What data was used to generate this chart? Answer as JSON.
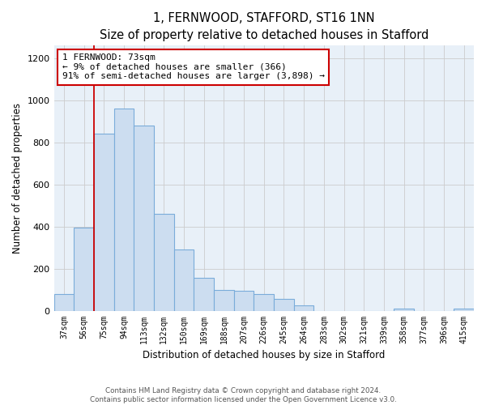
{
  "title": "1, FERNWOOD, STAFFORD, ST16 1NN",
  "subtitle": "Size of property relative to detached houses in Stafford",
  "xlabel": "Distribution of detached houses by size in Stafford",
  "ylabel": "Number of detached properties",
  "categories": [
    "37sqm",
    "56sqm",
    "75sqm",
    "94sqm",
    "113sqm",
    "132sqm",
    "150sqm",
    "169sqm",
    "188sqm",
    "207sqm",
    "226sqm",
    "245sqm",
    "264sqm",
    "283sqm",
    "302sqm",
    "321sqm",
    "339sqm",
    "358sqm",
    "377sqm",
    "396sqm",
    "415sqm"
  ],
  "values": [
    80,
    395,
    840,
    960,
    880,
    460,
    290,
    155,
    100,
    95,
    80,
    55,
    25,
    0,
    0,
    0,
    0,
    10,
    0,
    0,
    10
  ],
  "bar_color": "#ccddf0",
  "bar_edge_color": "#7aacda",
  "marker_line_color": "#cc0000",
  "annotation_box_facecolor": "#ffffff",
  "annotation_box_edgecolor": "#cc0000",
  "marker_label_line1": "1 FERNWOOD: 73sqm",
  "marker_label_line2": "← 9% of detached houses are smaller (366)",
  "marker_label_line3": "91% of semi-detached houses are larger (3,898) →",
  "ylim": [
    0,
    1260
  ],
  "yticks": [
    0,
    200,
    400,
    600,
    800,
    1000,
    1200
  ],
  "grid_color": "#cccccc",
  "plot_bg_color": "#e8f0f8",
  "fig_bg_color": "#ffffff",
  "title_fontsize": 10.5,
  "subtitle_fontsize": 9,
  "footer_line1": "Contains HM Land Registry data © Crown copyright and database right 2024.",
  "footer_line2": "Contains public sector information licensed under the Open Government Licence v3.0."
}
